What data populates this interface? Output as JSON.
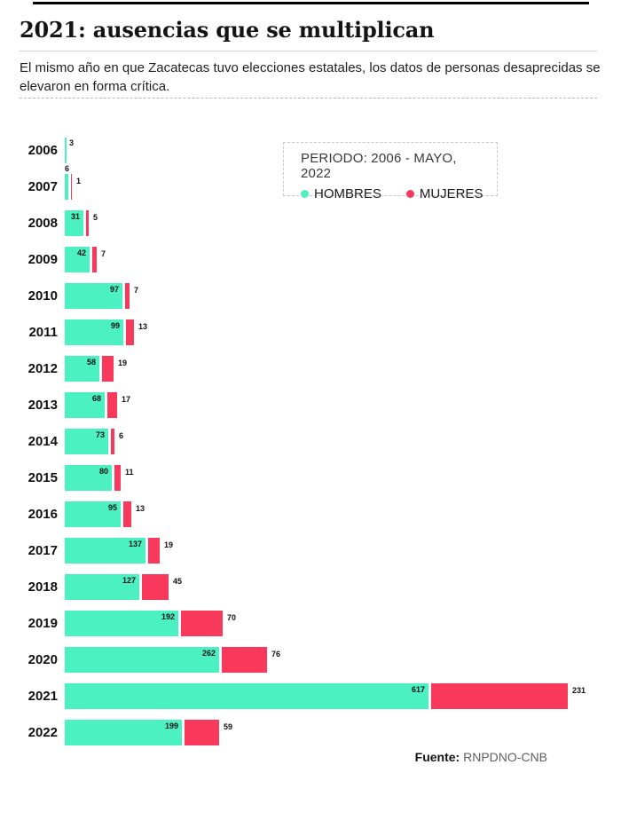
{
  "page": {
    "title": "2021: ausencias que se multiplican",
    "subtitle": "El mismo año en que Zacatecas tuvo elecciones estatales, los datos de personas desaprecidas se elevaron en forma crítica.",
    "source_label": "Fuente:",
    "source_value": "RNPDNO-CNB"
  },
  "legend": {
    "period": "PERIODO: 2006 - MAYO, 2022",
    "items": [
      {
        "label": "HOMBRES",
        "color": "#4BF1C1"
      },
      {
        "label": "MUJERES",
        "color": "#F8395B"
      }
    ]
  },
  "chart_data": {
    "type": "bar",
    "orientation": "horizontal",
    "stacked": true,
    "grid": false,
    "value_labels": true,
    "categories": [
      "2006",
      "2007",
      "2008",
      "2009",
      "2010",
      "2011",
      "2012",
      "2013",
      "2014",
      "2015",
      "2016",
      "2017",
      "2018",
      "2019",
      "2020",
      "2021",
      "2022"
    ],
    "series": [
      {
        "name": "HOMBRES",
        "color": "#4BF1C1",
        "values": [
          3,
          6,
          31,
          42,
          97,
          99,
          58,
          68,
          73,
          80,
          95,
          137,
          127,
          192,
          262,
          617,
          199
        ]
      },
      {
        "name": "MUJERES",
        "color": "#F8395B",
        "values": [
          0,
          1,
          5,
          7,
          7,
          13,
          19,
          17,
          6,
          11,
          13,
          19,
          45,
          70,
          76,
          231,
          59
        ]
      }
    ],
    "xlim": [
      0,
      870
    ]
  }
}
